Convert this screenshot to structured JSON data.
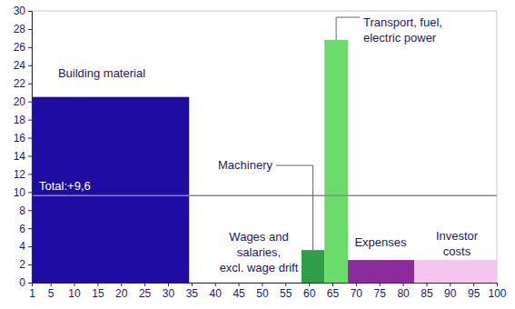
{
  "chart_data": {
    "type": "bar",
    "categories": [
      "Building material",
      "Wages and salaries, excl. wage drift",
      "Machinery",
      "Transport, fuel, electric power",
      "Expenses",
      "Investor costs"
    ],
    "bins": [
      1,
      34.5,
      58.4,
      63.3,
      68.3,
      82.4,
      100
    ],
    "values": [
      20.5,
      0,
      3.6,
      26.8,
      2.5,
      2.5
    ],
    "colors": [
      "#1e0ca3",
      "#1e0ca3",
      "#2f9e47",
      "#6bdb6b",
      "#8e2b9c",
      "#f2c6ee"
    ],
    "xlim": [
      1,
      100
    ],
    "xticks": [
      1,
      5,
      10,
      15,
      20,
      25,
      30,
      35,
      40,
      45,
      50,
      55,
      60,
      65,
      70,
      75,
      80,
      85,
      90,
      95,
      100
    ],
    "ylim": [
      0,
      30
    ],
    "yticks": [
      0,
      2,
      4,
      6,
      8,
      10,
      12,
      14,
      16,
      18,
      20,
      22,
      24,
      26,
      28,
      30
    ],
    "total": {
      "value": 9.6,
      "label": "Total:+9,6"
    },
    "grid": false
  }
}
